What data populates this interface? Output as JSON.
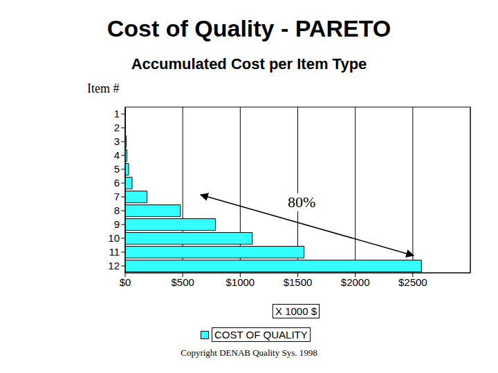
{
  "chart_data": {
    "type": "bar",
    "title": "Cost of Quality - PARETO",
    "subtitle": "Accumulated Cost per Item Type",
    "y_label": "Item #",
    "x_label": "X 1000 $",
    "orientation": "horizontal",
    "categories": [
      "1",
      "2",
      "3",
      "4",
      "5",
      "6",
      "7",
      "8",
      "9",
      "10",
      "11",
      "12"
    ],
    "series": [
      {
        "name": "COST OF QUALITY",
        "color": "#33ffff",
        "values": [
          1,
          3,
          8,
          15,
          30,
          60,
          190,
          480,
          785,
          1105,
          1555,
          2575
        ]
      }
    ],
    "xlim": [
      0,
      3000
    ],
    "xticks": [
      {
        "value": 0,
        "label": "$0"
      },
      {
        "value": 500,
        "label": "$500"
      },
      {
        "value": 1000,
        "label": "$1000"
      },
      {
        "value": 1500,
        "label": "$1500"
      },
      {
        "value": 2000,
        "label": "$2000"
      },
      {
        "value": 2500,
        "label": "$2500"
      }
    ],
    "grid": true,
    "legend": "bottom",
    "annotations": [
      {
        "text": "80%"
      }
    ],
    "footer": "Copyright DENAB Quality Sys. 1998"
  }
}
